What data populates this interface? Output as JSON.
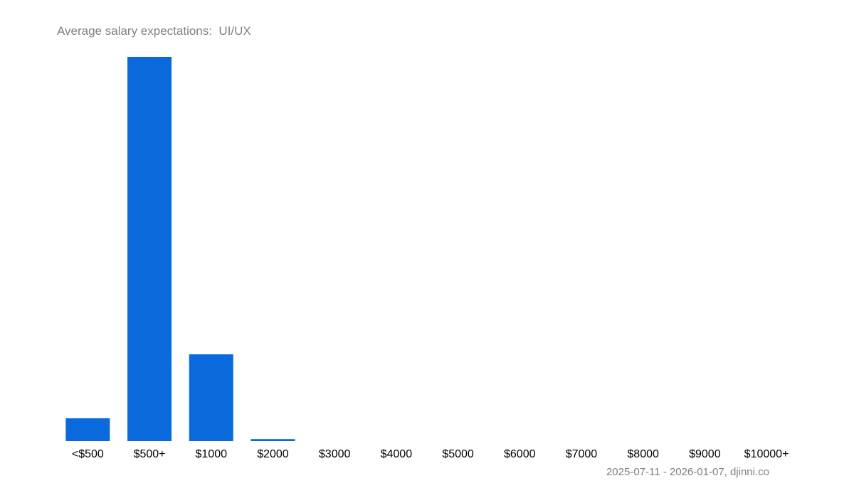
{
  "chart_data": {
    "type": "bar",
    "title": "Average salary expectations:  UI/UX",
    "xlabel": "",
    "ylabel": "",
    "categories": [
      "<$500",
      "$500+",
      "$1000",
      "$2000",
      "$3000",
      "$4000",
      "$5000",
      "$6000",
      "$7000",
      "$8000",
      "$9000",
      "$10000+"
    ],
    "values_unit": "share of respondents, % (estimated, no y-axis shown)",
    "values": [
      4.6,
      77.5,
      17.5,
      0.4,
      0,
      0,
      0,
      0,
      0,
      0,
      0,
      0
    ],
    "ylim": [
      0,
      77.5
    ],
    "grid": false,
    "bar_color": "#0a6adc",
    "footer": "2025-07-11 - 2026-01-07, djinni.co"
  }
}
